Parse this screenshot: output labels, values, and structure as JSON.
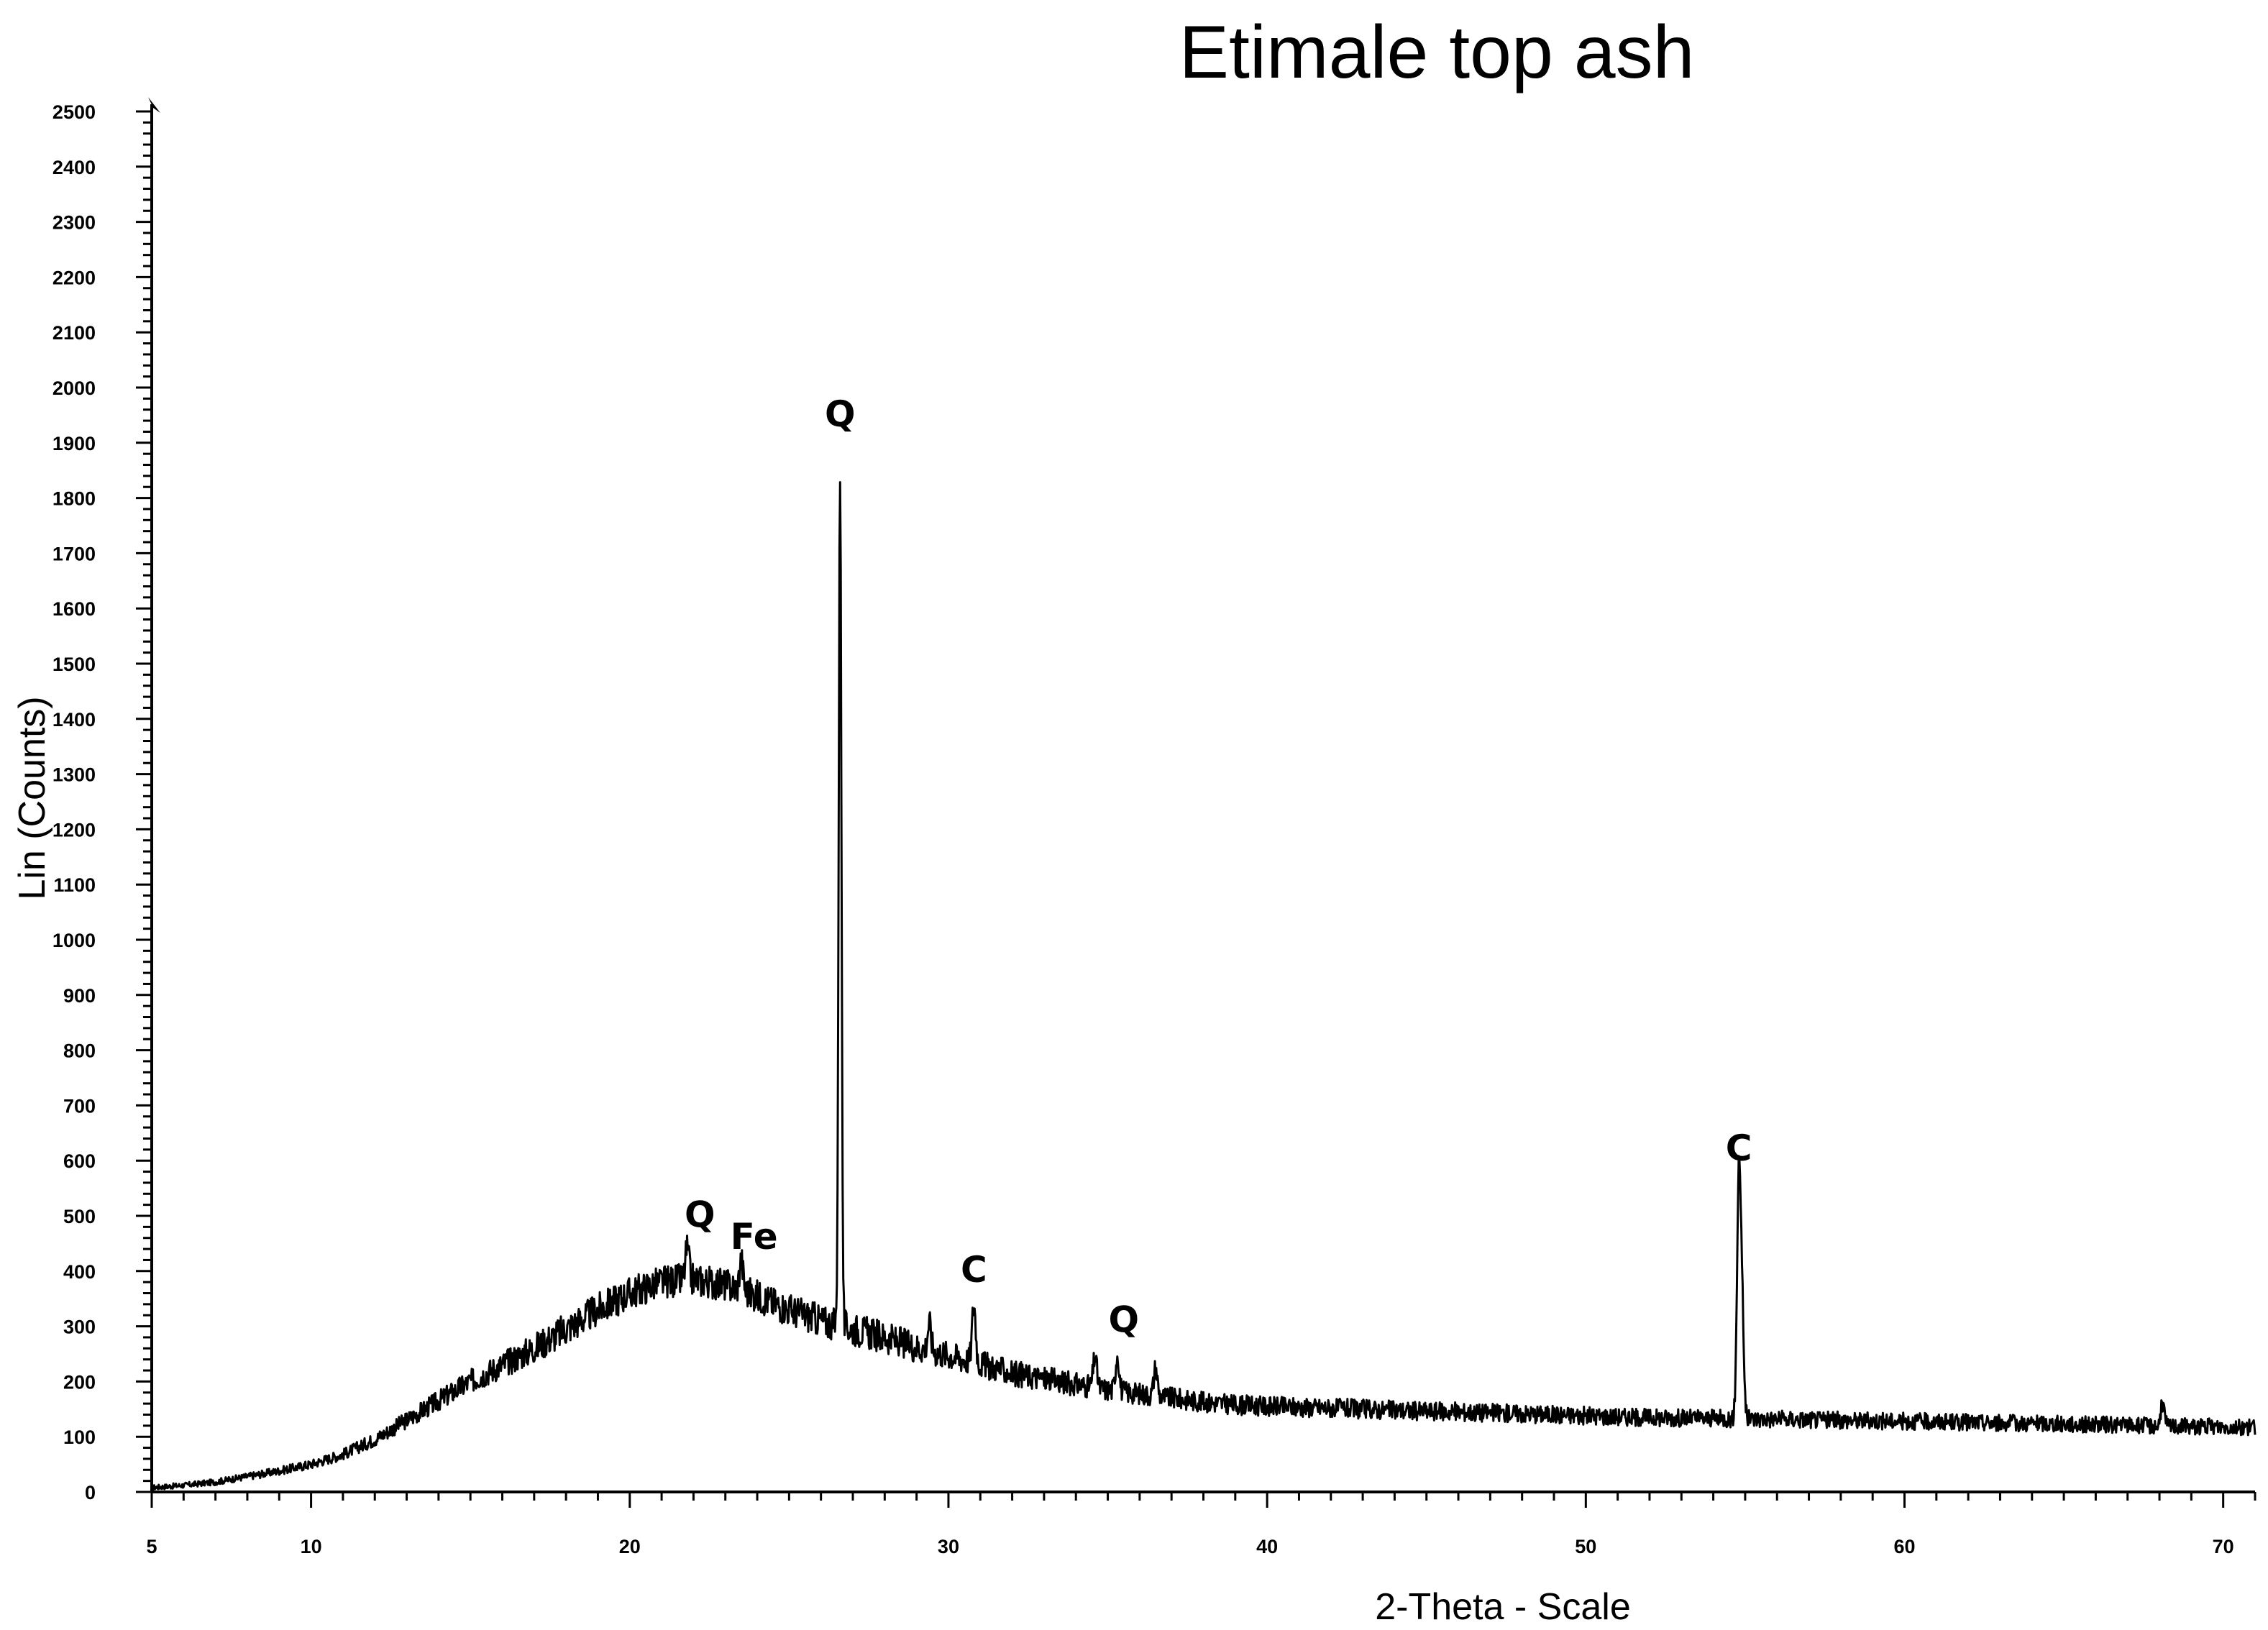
{
  "chart_data": {
    "type": "line",
    "title": "Etimale top ash",
    "xlabel": "2-Theta - Scale",
    "ylabel": "Lin (Counts)",
    "xlim": [
      5,
      71
    ],
    "ylim": [
      0,
      2500
    ],
    "x_ticks": [
      5,
      10,
      20,
      30,
      40,
      50,
      60,
      70
    ],
    "y_ticks": [
      0,
      100,
      200,
      300,
      400,
      500,
      600,
      700,
      800,
      900,
      1000,
      1100,
      1200,
      1300,
      1400,
      1500,
      1600,
      1700,
      1800,
      1900,
      2000,
      2100,
      2200,
      2300,
      2400,
      2500
    ],
    "grid": false,
    "line_color": "#000000",
    "series": [
      {
        "baseline": [
          [
            5,
            8
          ],
          [
            6,
            12
          ],
          [
            7,
            18
          ],
          [
            8,
            28
          ],
          [
            9,
            38
          ],
          [
            10,
            50
          ],
          [
            11,
            68
          ],
          [
            12,
            95
          ],
          [
            13,
            130
          ],
          [
            14,
            165
          ],
          [
            15,
            200
          ],
          [
            16,
            230
          ],
          [
            17,
            260
          ],
          [
            18,
            295
          ],
          [
            19,
            330
          ],
          [
            20,
            360
          ],
          [
            21,
            380
          ],
          [
            22,
            385
          ],
          [
            23,
            375
          ],
          [
            24,
            355
          ],
          [
            25,
            330
          ],
          [
            26,
            310
          ],
          [
            27,
            295
          ],
          [
            28,
            280
          ],
          [
            29,
            262
          ],
          [
            30,
            248
          ],
          [
            31,
            232
          ],
          [
            32,
            215
          ],
          [
            33,
            205
          ],
          [
            34,
            195
          ],
          [
            35,
            185
          ],
          [
            36,
            178
          ],
          [
            37,
            170
          ],
          [
            38,
            163
          ],
          [
            39,
            158
          ],
          [
            40,
            155
          ],
          [
            42,
            152
          ],
          [
            44,
            148
          ],
          [
            46,
            145
          ],
          [
            48,
            142
          ],
          [
            50,
            138
          ],
          [
            52,
            135
          ],
          [
            54,
            133
          ],
          [
            56,
            132
          ],
          [
            58,
            130
          ],
          [
            60,
            128
          ],
          [
            62,
            126
          ],
          [
            64,
            124
          ],
          [
            66,
            122
          ],
          [
            68,
            120
          ],
          [
            70,
            118
          ],
          [
            71,
            117
          ]
        ],
        "peaks": [
          {
            "x": 21.8,
            "y": 440
          },
          {
            "x": 23.5,
            "y": 420
          },
          {
            "x": 26.6,
            "y": 1850
          },
          {
            "x": 29.4,
            "y": 305
          },
          {
            "x": 30.8,
            "y": 340
          },
          {
            "x": 34.6,
            "y": 245
          },
          {
            "x": 35.3,
            "y": 250
          },
          {
            "x": 36.5,
            "y": 225
          },
          {
            "x": 54.8,
            "y": 560
          },
          {
            "x": 54.9,
            "y": 330
          },
          {
            "x": 68.1,
            "y": 160
          }
        ]
      }
    ],
    "annotations": [
      {
        "text": "Q",
        "x": 26.6,
        "y": 1930
      },
      {
        "text": "Q",
        "x": 22.2,
        "y": 480
      },
      {
        "text": "Fe",
        "x": 23.9,
        "y": 440
      },
      {
        "text": "C",
        "x": 30.8,
        "y": 380
      },
      {
        "text": "Q",
        "x": 35.5,
        "y": 290
      },
      {
        "text": "C",
        "x": 54.8,
        "y": 600
      }
    ]
  }
}
